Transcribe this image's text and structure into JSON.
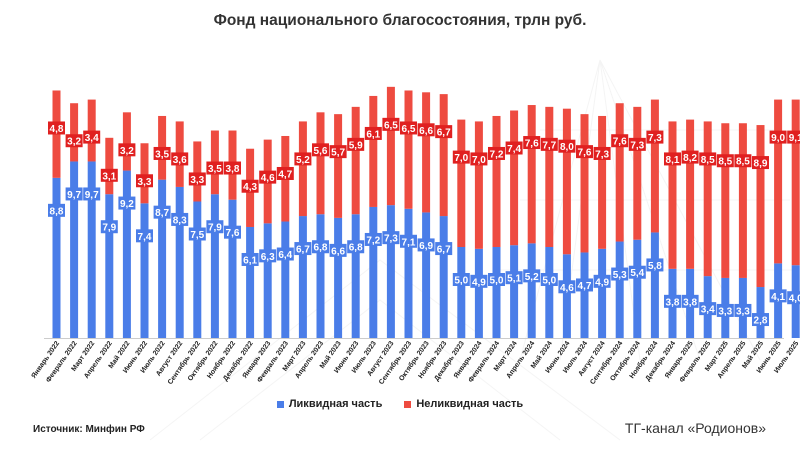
{
  "title": "Фонд национального благосостояния, трлн руб.",
  "source": "Источник: Минфин РФ",
  "channel": "ТГ-канал «Родионов»",
  "colors": {
    "liquid": "#4a7de8",
    "illiquid": "#ee4b40",
    "illiquid_label_bg": "#e02020"
  },
  "chart_data": {
    "type": "bar",
    "stacked": true,
    "title": "Фонд национального благосостояния, трлн руб.",
    "categories": [
      "Январь 2022",
      "Февраль 2022",
      "Март 2022",
      "Апрель 2022",
      "Май 2022",
      "Июнь 2022",
      "Июль 2022",
      "Август 2022",
      "Сентябрь 2022",
      "Октябрь 2022",
      "Ноябрь 2022",
      "Декабрь 2022",
      "Январь 2023",
      "Февраль 2023",
      "Март 2023",
      "Апрель 2023",
      "Май 2023",
      "Июнь 2023",
      "Июль 2023",
      "Август 2023",
      "Сентябрь 2023",
      "Октябрь 2023",
      "Ноябрь 2023",
      "Декабрь 2023",
      "Январь 2024",
      "Февраль 2024",
      "Март 2024",
      "Апрель 2024",
      "Май 2024",
      "Июнь 2024",
      "Июль 2024",
      "Август 2024",
      "Сентябрь 2024",
      "Октябрь 2024",
      "Ноябрь 2024",
      "Декабрь 2024",
      "Январь 2025",
      "Февраль 2025",
      "Март 2025",
      "Апрель 2025",
      "Май 2025",
      "Июнь 2025",
      "Июль 2025"
    ],
    "series": [
      {
        "name": "Ликвидная часть",
        "values": [
          8.8,
          9.7,
          9.7,
          7.9,
          9.2,
          7.4,
          8.7,
          8.3,
          7.5,
          7.9,
          7.6,
          6.1,
          6.3,
          6.4,
          6.7,
          6.8,
          6.6,
          6.8,
          7.2,
          7.3,
          7.1,
          6.9,
          6.7,
          5.0,
          4.9,
          5.0,
          5.1,
          5.2,
          5.0,
          4.6,
          4.7,
          4.9,
          5.3,
          5.4,
          5.8,
          3.8,
          3.8,
          3.4,
          3.3,
          3.3,
          2.8,
          4.1,
          4.0
        ]
      },
      {
        "name": "Неликвидная часть",
        "values": [
          4.8,
          3.2,
          3.4,
          3.1,
          3.2,
          3.3,
          3.5,
          3.6,
          3.3,
          3.5,
          3.8,
          4.3,
          4.6,
          4.7,
          5.2,
          5.6,
          5.7,
          5.9,
          6.1,
          6.5,
          6.5,
          6.6,
          6.7,
          7.0,
          7.0,
          7.2,
          7.4,
          7.6,
          7.7,
          8.0,
          7.6,
          7.3,
          7.6,
          7.3,
          7.3,
          8.1,
          8.2,
          8.5,
          8.5,
          8.5,
          8.9,
          9.0,
          9.1
        ]
      }
    ],
    "ylim": [
      0,
      14
    ],
    "legend": "bottom"
  }
}
